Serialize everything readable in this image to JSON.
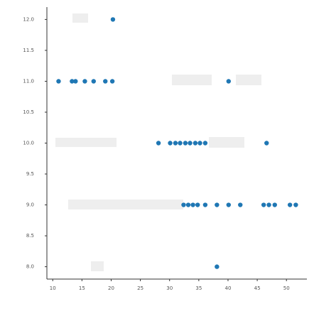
{
  "chart_data": {
    "type": "scatter",
    "x": [
      20.3,
      11.0,
      13.3,
      13.9,
      15.5,
      17.0,
      19.0,
      20.2,
      40.1,
      28.1,
      30.1,
      31.0,
      31.8,
      32.7,
      33.5,
      34.4,
      35.2,
      36.1,
      46.6,
      32.4,
      33.2,
      34.0,
      34.8,
      36.1,
      38.1,
      40.1,
      42.1,
      46.1,
      47.0,
      48.0,
      50.6,
      51.6,
      38.1
    ],
    "y": [
      12.0,
      11.0,
      11.0,
      11.0,
      11.0,
      11.0,
      11.0,
      11.0,
      11.0,
      10.0,
      10.0,
      10.0,
      10.0,
      10.0,
      10.0,
      10.0,
      10.0,
      10.0,
      10.0,
      9.0,
      9.0,
      9.0,
      9.0,
      9.0,
      9.0,
      9.0,
      9.0,
      9.0,
      9.0,
      9.0,
      9.0,
      9.0,
      8.0
    ],
    "color": "#1f77b4",
    "xlim": [
      9,
      53.5
    ],
    "ylim": [
      7.8,
      12.2
    ],
    "xticks": [
      10,
      15,
      20,
      25,
      30,
      35,
      40,
      45,
      50
    ],
    "yticks": [
      {
        "value": 8,
        "label": "8.0"
      },
      8.5,
      {
        "value": 9,
        "label": "9.0"
      },
      9.5,
      {
        "value": 10,
        "label": "10.0"
      },
      10.5,
      {
        "value": 11,
        "label": "11.0"
      },
      11.5,
      {
        "value": 12,
        "label": "12.0"
      }
    ]
  }
}
